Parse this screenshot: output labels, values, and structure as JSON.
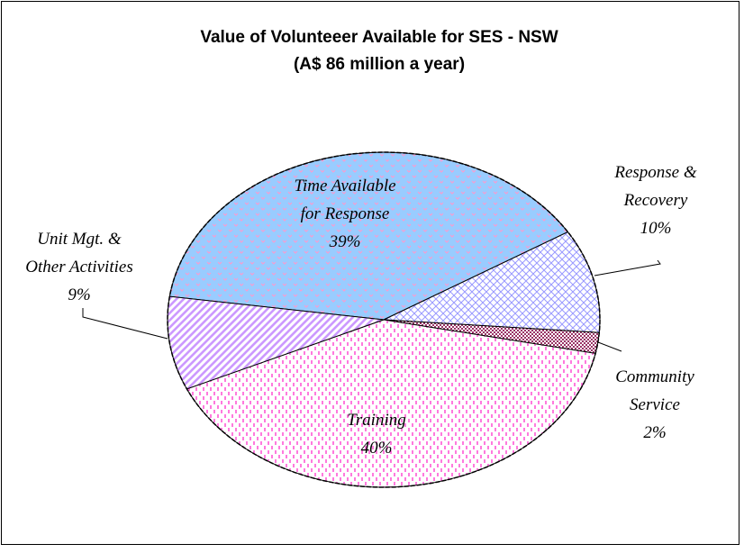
{
  "chart_data": {
    "type": "pie",
    "title": "Value of Volunteeer Available for SES - NSW",
    "subtitle": "(A$ 86 million a year)",
    "categories": [
      "Time Available\nfor Response",
      "Response &\nRecovery",
      "Community\nService",
      "Training",
      "Unit Mgt. &\nOther Activities"
    ],
    "values": [
      39,
      10,
      2,
      40,
      9
    ],
    "value_labels": [
      "39%",
      "10%",
      "2%",
      "40%",
      "9%"
    ],
    "colors": [
      "#99ccff",
      "#9999ff",
      "#993366",
      "#ff33cc",
      "#cc99ff"
    ],
    "patterns": [
      "dots",
      "crosshatch",
      "checker",
      "dashes",
      "stripes"
    ]
  }
}
